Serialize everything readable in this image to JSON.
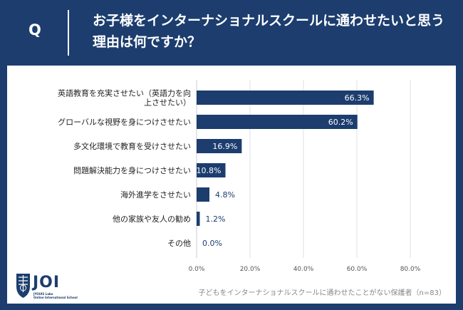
{
  "header": {
    "q_label": "Q",
    "question": "お子様をインターナショナルスクールに通わせたいと思う理由は何ですか？"
  },
  "footer": {
    "note": "子どもをインターナショナルスクールに通わせたことがない保護者（n=83）"
  },
  "logo": {
    "text": "JOI",
    "sub1": "JYOUIS Labo",
    "sub2": "Online International School"
  },
  "colors": {
    "background": "#1c3d6e",
    "bar": "#1c3d6e",
    "card": "#ffffff"
  },
  "chart_data": {
    "type": "bar",
    "orientation": "horizontal",
    "categories": [
      "英語教育を充実させたい（英語力を向上させたい）",
      "グローバルな視野を身につけさせたい",
      "多文化環境で教育を受けさせたい",
      "問題解決能力を身につけさせたい",
      "海外進学をさせたい",
      "他の家族や友人の勧め",
      "その他"
    ],
    "category_lines": [
      [
        "英語教育を充実させたい（英語力を向",
        "上させたい）"
      ],
      [
        "グローバルな視野を身につけさせたい"
      ],
      [
        "多文化環境で教育を受けさせたい"
      ],
      [
        "問題解決能力を身につけさせたい"
      ],
      [
        "海外進学をさせたい"
      ],
      [
        "他の家族や友人の勧め"
      ],
      [
        "その他"
      ]
    ],
    "values": [
      66.3,
      60.2,
      16.9,
      10.8,
      4.8,
      1.2,
      0.0
    ],
    "value_labels": [
      "66.3%",
      "60.2%",
      "16.9%",
      "10.8%",
      "4.8%",
      "1.2%",
      "0.0%"
    ],
    "xlim": [
      0,
      80
    ],
    "ticks": [
      0,
      20,
      40,
      60,
      80
    ],
    "tick_labels": [
      "0.0%",
      "20.0%",
      "40.0%",
      "60.0%",
      "80.0%"
    ],
    "grid": true
  }
}
